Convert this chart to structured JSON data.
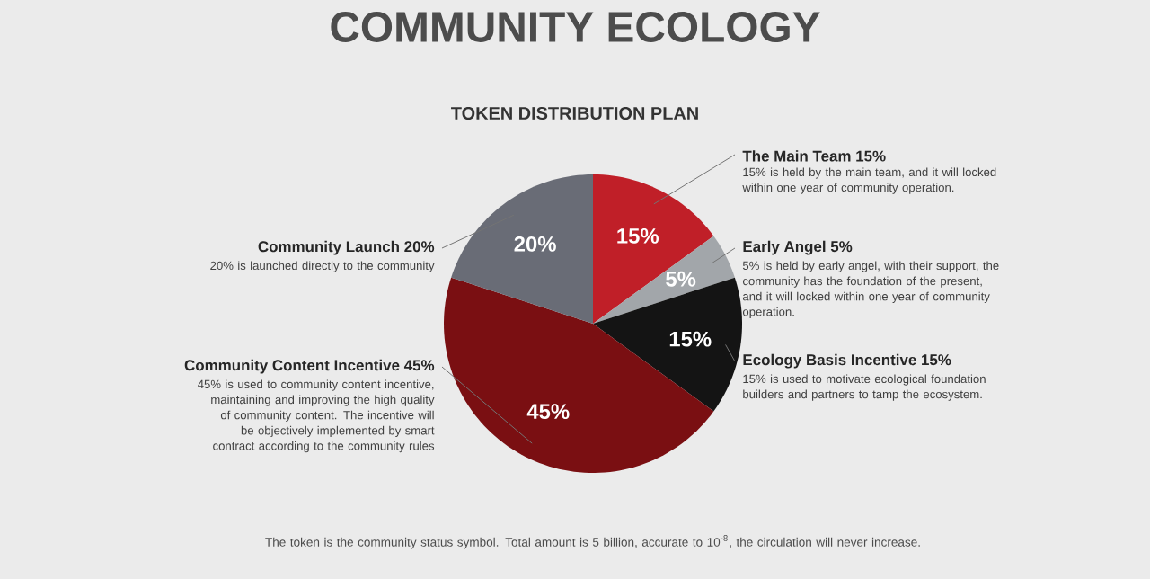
{
  "chart_data": {
    "type": "pie",
    "title": "COMMUNITY ECOLOGY",
    "subtitle": "TOKEN DISTRIBUTION PLAN",
    "categories": [
      "The Main Team 15%",
      "Early Angel 5%",
      "Ecology Basis Incentive 15%",
      "Community Content Incentive 45%",
      "Community Launch 20%"
    ],
    "values": [
      15,
      5,
      15,
      45,
      20
    ],
    "value_labels": [
      "15%",
      "5%",
      "15%",
      "45%",
      "20%"
    ],
    "colors": [
      "#c01f28",
      "#a2a6aa",
      "#141414",
      "#7a0f12",
      "#696c76"
    ],
    "annotations": [
      "15% is held by the main team, and it will locked within one year of community operation.",
      "5% is held by early angel, with their support, the community has the foundation of the present, and it will locked within one year of community operation.",
      "15% is used to motivate ecological foundation builders and partners to tamp the ecosystem.",
      "45% is used to community content incentive, maintaining and improving the high quality of community content. The incentive will be objectively implemented by smart contract according to the community rules",
      "20% is launched directly to the community",
      "The token is the community status symbol. Total amount is 5 billion, accurate to 10$^{-8}$, the circulation will never increase."
    ]
  }
}
